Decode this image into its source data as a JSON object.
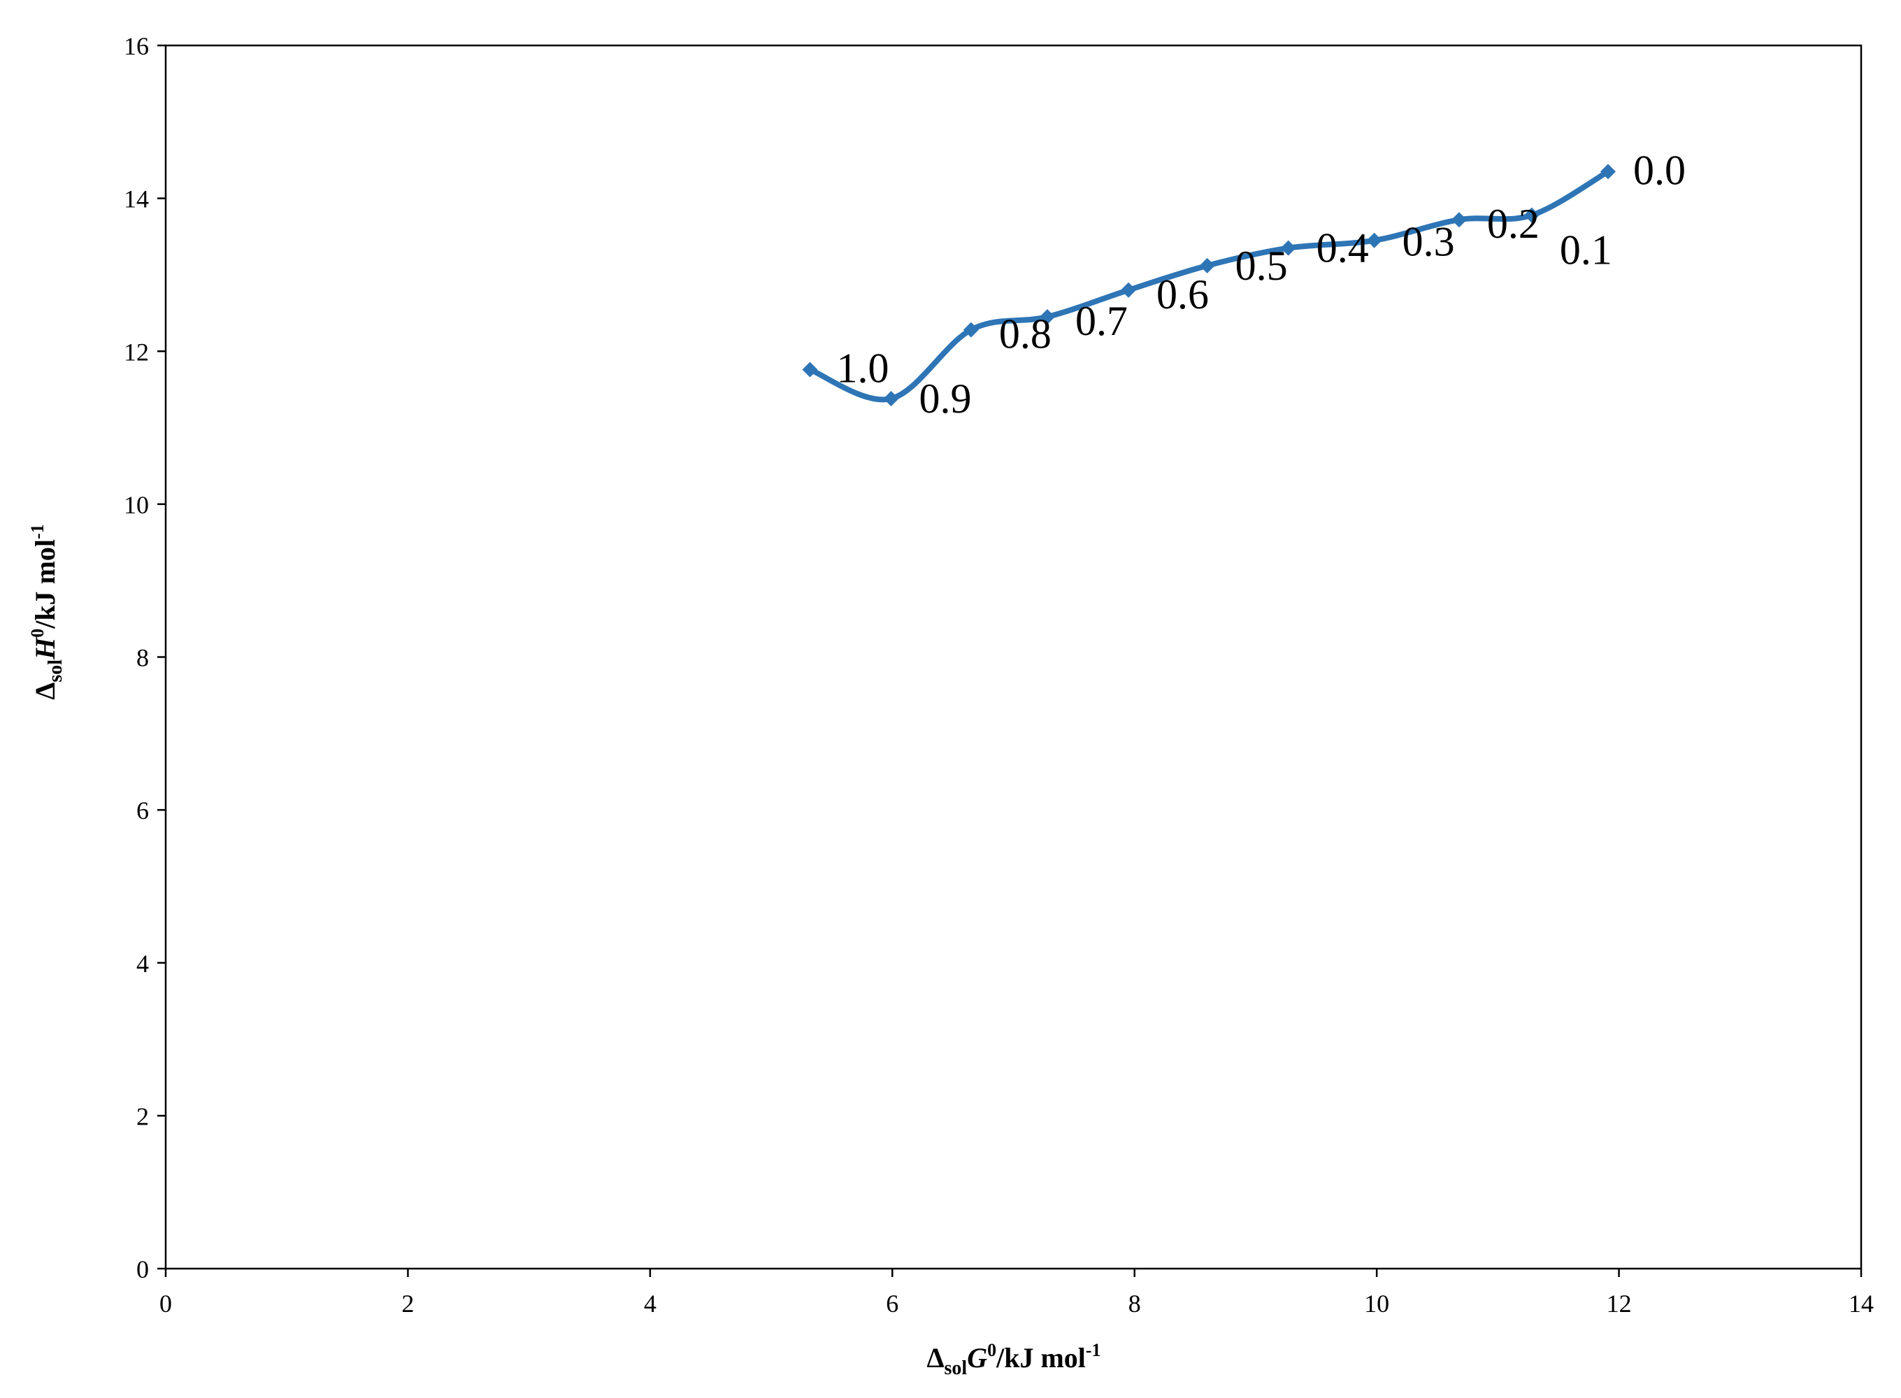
{
  "chart_data": {
    "type": "line",
    "title": "",
    "xlabel": {
      "delta": "Δ",
      "sub": "sol",
      "sym": "G",
      "sup": "0",
      "unit": "/kJ mol",
      "unit_sup": "-1"
    },
    "ylabel": {
      "delta": "Δ",
      "sub": "sol",
      "sym": "H",
      "sup": "0",
      "unit": "/kJ mol",
      "unit_sup": "-1"
    },
    "xlim": [
      0,
      14
    ],
    "ylim": [
      0,
      16
    ],
    "xticks": [
      0,
      2,
      4,
      6,
      8,
      10,
      12,
      14
    ],
    "yticks": [
      0,
      2,
      4,
      6,
      8,
      10,
      12,
      14,
      16
    ],
    "grid": false,
    "legend": "none",
    "line_style": "smoothed",
    "marker": "diamond",
    "series": [
      {
        "color": "#2E75B6",
        "points": [
          {
            "x": 5.32,
            "y": 11.76,
            "label": "1.0"
          },
          {
            "x": 5.99,
            "y": 11.38,
            "label": "0.9"
          },
          {
            "x": 6.65,
            "y": 12.28,
            "label": "0.8"
          },
          {
            "x": 7.28,
            "y": 12.45,
            "label": "0.7"
          },
          {
            "x": 7.95,
            "y": 12.8,
            "label": "0.6"
          },
          {
            "x": 8.6,
            "y": 13.12,
            "label": "0.5"
          },
          {
            "x": 9.27,
            "y": 13.35,
            "label": "0.4"
          },
          {
            "x": 9.98,
            "y": 13.45,
            "label": "0.3"
          },
          {
            "x": 10.68,
            "y": 13.72,
            "label": "0.2"
          },
          {
            "x": 11.28,
            "y": 13.78,
            "label": "0.1"
          },
          {
            "x": 11.91,
            "y": 14.35,
            "label": "0.0"
          }
        ]
      }
    ]
  }
}
